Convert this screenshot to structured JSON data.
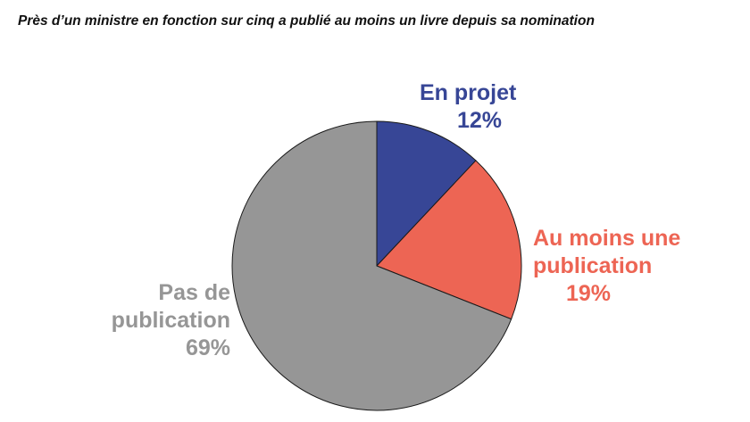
{
  "header": {
    "subtitle": "Près d’un ministre en fonction sur cinq a publié au moins un livre depuis sa nomination"
  },
  "chart_data": {
    "type": "pie",
    "start_angle_deg": 0,
    "direction": "clockwise",
    "slices": [
      {
        "label": "En projet",
        "label_lines": [
          "En projet"
        ],
        "value": 12,
        "display": "12%",
        "color": "#374696"
      },
      {
        "label": "Au moins une publication",
        "label_lines": [
          "Au moins une",
          "publication"
        ],
        "value": 19,
        "display": "19%",
        "color": "#ED6554"
      },
      {
        "label": "Pas de publication",
        "label_lines": [
          "Pas de",
          "publication"
        ],
        "value": 69,
        "display": "69%",
        "color": "#969696"
      }
    ]
  }
}
